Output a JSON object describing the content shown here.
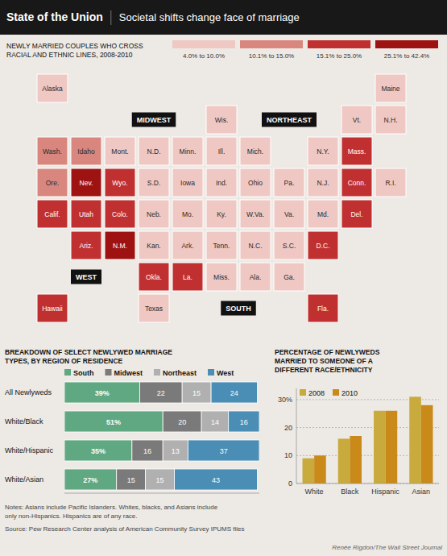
{
  "title": "State of the Union",
  "subtitle": "Societal shifts change face of marriage",
  "chart_data": [
    {
      "type": "map",
      "title": [
        "NEWLY MARRIED COUPLES WHO CROSS",
        "RACIAL AND ETHNIC LINES, 2008-2010"
      ],
      "categories": [
        "Wash.",
        "Ore.",
        "Calif.",
        "Nev.",
        "Idaho",
        "Mont.",
        "Utah",
        "Ariz.",
        "Wyo.",
        "Colo.",
        "N.M.",
        "N.D.",
        "S.D.",
        "Neb.",
        "Kan.",
        "Okla.",
        "Texas",
        "Minn.",
        "Iowa",
        "Mo.",
        "Wis.",
        "Ill.",
        "Ind.",
        "Mich.",
        "Ohio",
        "Ark.",
        "Miss.",
        "La.",
        "Ala.",
        "Tenn.",
        "Ky.",
        "W.Va.",
        "Va.",
        "N.C.",
        "S.C.",
        "Ga.",
        "Fla.",
        "Pa.",
        "N.Y.",
        "Maine",
        "Mass.",
        "Alaska",
        "Hawaii",
        "N.H.",
        "Vt.",
        "R.I.",
        "Conn.",
        "N.J.",
        "Del.",
        "Md.",
        "D.C."
      ],
      "colors": [
        "#d9877e",
        "#d9877e",
        "#c13030",
        "#9e1212",
        "#d9877e",
        "#f0c8c3",
        "#c13030",
        "#c13030",
        "#c13030",
        "#c13030",
        "#9e1212",
        "#f0c8c3",
        "#f0c8c3",
        "#f0c8c3",
        "#f0c8c3",
        "#c13030",
        "#f0c8c3",
        "#f0c8c3",
        "#f0c8c3",
        "#f0c8c3",
        "#f0c8c3",
        "#f0c8c3",
        "#f0c8c3",
        "#f0c8c3",
        "#f0c8c3",
        "#f0c8c3",
        "#f0c8c3",
        "#c13030",
        "#f0c8c3",
        "#f0c8c3",
        "#f0c8c3",
        "#f0c8c3",
        "#f0c8c3",
        "#f0c8c3",
        "#f0c8c3",
        "#f0c8c3",
        "#c13030",
        "#f0c8c3",
        "#f0c8c3",
        "#f0c8c3",
        "#c13030",
        "#f0c8c3",
        "#c13030",
        "#f0c8c3",
        "#f0c8c3",
        "#f0c8c3",
        "#c13030",
        "#f0c8c3",
        "#c13030",
        "#f0c8c3",
        "#c13030"
      ],
      "series": [
        {
          "name": "4.0% to 10.0%",
          "color": "#f0c8c3"
        },
        {
          "name": "10.1% to 15.0%",
          "color": "#d9877e"
        },
        {
          "name": "15.1% to 25.0%",
          "color": "#c13030"
        },
        {
          "name": "25.1% to 42.4%",
          "color": "#9e1212"
        }
      ],
      "legend": "top",
      "annotations": [
        "WEST",
        "MIDWEST",
        "SOUTH",
        "NORTHEAST"
      ]
    },
    {
      "type": "bar",
      "title": [
        "BREAKDOWN OF SELECT NEWLYWED MARRIAGE",
        "TYPES, BY REGION OF RESIDENCE"
      ],
      "orientation": "horizontal",
      "stacked": true,
      "categories": [
        "All Newlyweds",
        "White/Black",
        "White/Hispanic",
        "White/Asian"
      ],
      "series": [
        {
          "name": "South",
          "color": "#5fa882",
          "values": [
            39,
            51,
            35,
            27
          ],
          "value_labels": [
            "39%",
            "51%",
            "35%",
            "27%"
          ]
        },
        {
          "name": "Midwest",
          "color": "#7a7a7a",
          "values": [
            22,
            20,
            16,
            15
          ]
        },
        {
          "name": "Northeast",
          "color": "#b0b0b0",
          "values": [
            15,
            14,
            13,
            15
          ]
        },
        {
          "name": "West",
          "color": "#4a8db5",
          "values": [
            24,
            16,
            37,
            43
          ]
        }
      ],
      "xlim": [
        0,
        101
      ],
      "data_labels": true,
      "tick_labels": false,
      "grid": false,
      "legend": "top"
    },
    {
      "type": "bar",
      "title": [
        "PERCENTAGE OF NEWLYWEDS",
        "MARRIED TO SOMEONE OF A",
        "DIFFERENT RACE/ETHNICITY"
      ],
      "categories": [
        "White",
        "Black",
        "Hispanic",
        "Asian"
      ],
      "series": [
        {
          "name": "2008",
          "color": "#c9aa3c",
          "values": [
            9,
            16,
            26,
            31
          ]
        },
        {
          "name": "2010",
          "color": "#c98a1a",
          "values": [
            10,
            17,
            26,
            28
          ]
        }
      ],
      "ylim": [
        0,
        34
      ],
      "yticks": [
        0,
        10,
        20,
        {
          "value": 30,
          "label": "30%"
        }
      ],
      "grid": true,
      "legend": "upper left"
    }
  ],
  "notes": [
    "Notes: Asians include Pacific Islanders. Whites, blacks, and Asians include",
    "only non-Hispanics. Hispanics are of any race."
  ],
  "source": "Source: Pew Research Center analysis of American Community Survey IPUMS files",
  "credit": "Renée Rigdon/The Wall Street Journal"
}
